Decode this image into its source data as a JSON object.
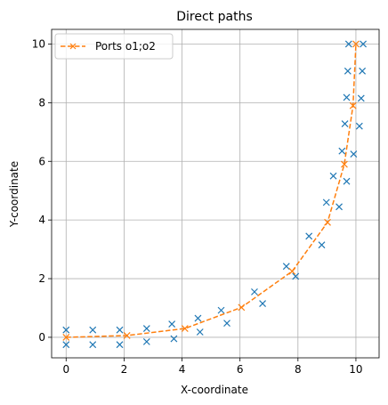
{
  "chart_data": {
    "type": "scatter",
    "title": "Direct paths",
    "xlabel": "X-coordinate",
    "ylabel": "Y-coordinate",
    "xlim": [
      -0.5,
      10.8
    ],
    "ylim": [
      -0.7,
      10.5
    ],
    "xticks": [
      "0",
      "2",
      "4",
      "6",
      "8",
      "10"
    ],
    "yticks": [
      "0",
      "2",
      "4",
      "6",
      "8",
      "10"
    ],
    "grid": true,
    "legend_position": "top-left",
    "series": [
      {
        "style": "x-markers",
        "color": "#1f77b4",
        "points": [
          [
            0.0,
            0.25
          ],
          [
            0.0,
            -0.25
          ],
          [
            0.92,
            0.25
          ],
          [
            0.92,
            -0.25
          ],
          [
            1.85,
            0.25
          ],
          [
            1.85,
            -0.25
          ],
          [
            2.78,
            0.3
          ],
          [
            2.78,
            -0.15
          ],
          [
            3.65,
            0.45
          ],
          [
            3.72,
            -0.05
          ],
          [
            4.55,
            0.65
          ],
          [
            4.62,
            0.18
          ],
          [
            5.35,
            0.92
          ],
          [
            5.55,
            0.48
          ],
          [
            6.5,
            1.55
          ],
          [
            6.78,
            1.15
          ],
          [
            7.6,
            2.42
          ],
          [
            7.92,
            2.08
          ],
          [
            8.38,
            3.45
          ],
          [
            8.82,
            3.15
          ],
          [
            8.98,
            4.6
          ],
          [
            9.42,
            4.45
          ],
          [
            9.22,
            5.5
          ],
          [
            9.68,
            5.32
          ],
          [
            9.52,
            6.35
          ],
          [
            9.92,
            6.25
          ],
          [
            9.62,
            7.28
          ],
          [
            10.12,
            7.2
          ],
          [
            9.68,
            8.18
          ],
          [
            10.18,
            8.15
          ],
          [
            9.72,
            9.08
          ],
          [
            10.22,
            9.08
          ],
          [
            9.75,
            10.0
          ],
          [
            10.25,
            10.0
          ]
        ]
      },
      {
        "name": "Ports o1;o2",
        "style": "dashed-line-x-markers",
        "color": "#ff7f0e",
        "points": [
          [
            0.0,
            0.0
          ],
          [
            2.1,
            0.06
          ],
          [
            4.1,
            0.3
          ],
          [
            6.05,
            1.02
          ],
          [
            7.8,
            2.25
          ],
          [
            9.02,
            3.92
          ],
          [
            9.6,
            5.9
          ],
          [
            9.9,
            7.9
          ],
          [
            10.0,
            10.0
          ]
        ]
      }
    ]
  }
}
